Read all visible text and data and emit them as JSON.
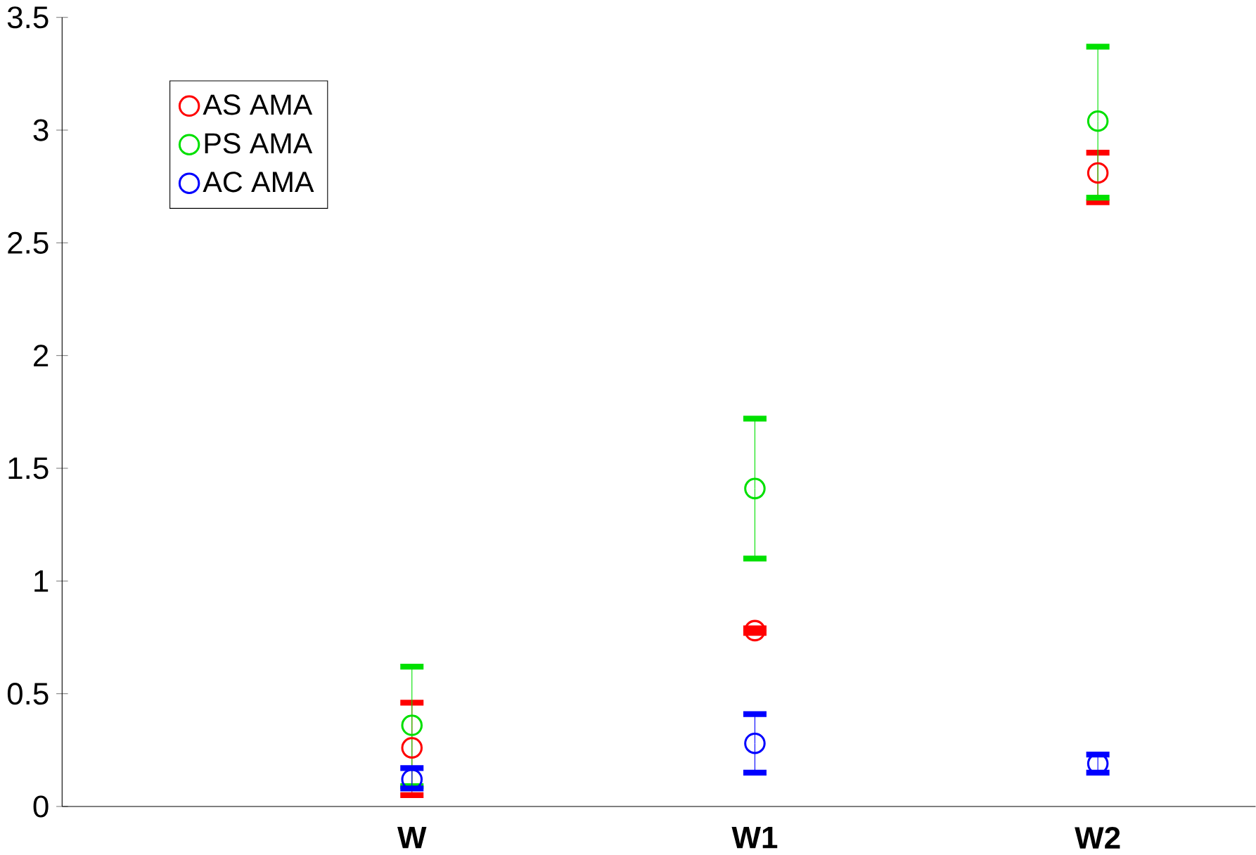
{
  "chart_data": {
    "type": "scatter",
    "categories": [
      "W",
      "W1",
      "W2"
    ],
    "series": [
      {
        "name": "AS AMA",
        "color": "#ff0000",
        "values": [
          0.26,
          0.78,
          2.81
        ],
        "errors": [
          [
            0.05,
            0.46
          ],
          [
            0.77,
            0.79
          ],
          [
            2.68,
            2.9
          ]
        ]
      },
      {
        "name": "PS AMA",
        "color": "#00e000",
        "values": [
          0.36,
          1.41,
          3.04
        ],
        "errors": [
          [
            0.09,
            0.62
          ],
          [
            1.1,
            1.72
          ],
          [
            2.7,
            3.37
          ]
        ]
      },
      {
        "name": "AC AMA",
        "color": "#0000ff",
        "values": [
          0.12,
          0.28,
          0.19
        ],
        "errors": [
          [
            0.08,
            0.17
          ],
          [
            0.15,
            0.41
          ],
          [
            0.15,
            0.23
          ]
        ]
      }
    ],
    "ylim": [
      0,
      3.5
    ],
    "yticks": [
      0,
      0.5,
      1,
      1.5,
      2,
      2.5,
      3,
      3.5
    ],
    "marker": "circle",
    "legend": "top left",
    "grid": false
  }
}
